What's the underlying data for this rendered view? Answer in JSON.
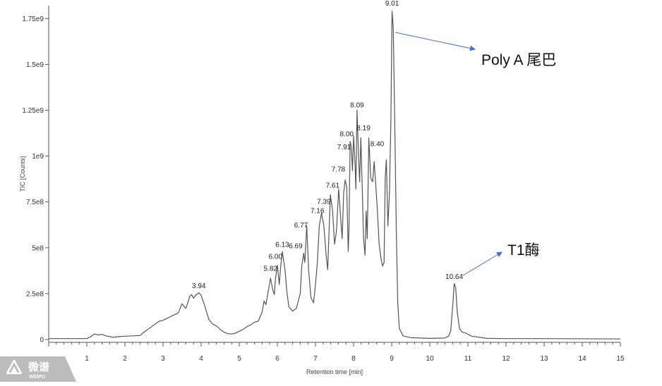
{
  "chart_data": {
    "type": "line",
    "xlabel": "Retention time [min]",
    "ylabel": "TIC [Counts]",
    "xlim": [
      0,
      15
    ],
    "ylim": [
      0,
      1850000000.0
    ],
    "x_ticks": [
      1,
      2,
      3,
      4,
      5,
      6,
      7,
      8,
      9,
      10,
      11,
      12,
      13,
      14,
      15
    ],
    "y_ticks": [
      {
        "value": 0,
        "label": "0"
      },
      {
        "value": 250000000,
        "label": "2.5e8"
      },
      {
        "value": 500000000,
        "label": "5e8"
      },
      {
        "value": 750000000,
        "label": "7.5e8"
      },
      {
        "value": 1000000000,
        "label": "1e9"
      },
      {
        "value": 1250000000,
        "label": "1.25e9"
      },
      {
        "value": 1500000000,
        "label": "1.5e9"
      },
      {
        "value": 1750000000,
        "label": "1.75e9"
      }
    ],
    "grid": false,
    "series": [
      {
        "color": "#555555",
        "points": [
          [
            0,
            5000000
          ],
          [
            1.0,
            5000000
          ],
          [
            1.1,
            15000000
          ],
          [
            1.2,
            30000000
          ],
          [
            1.3,
            25000000
          ],
          [
            1.4,
            28000000
          ],
          [
            1.5,
            20000000
          ],
          [
            1.7,
            12000000
          ],
          [
            1.8,
            15000000
          ],
          [
            2.0,
            18000000
          ],
          [
            2.2,
            20000000
          ],
          [
            2.4,
            22000000
          ],
          [
            2.5,
            40000000
          ],
          [
            2.6,
            55000000
          ],
          [
            2.7,
            70000000
          ],
          [
            2.8,
            85000000
          ],
          [
            2.9,
            100000000
          ],
          [
            3.0,
            105000000
          ],
          [
            3.1,
            115000000
          ],
          [
            3.2,
            125000000
          ],
          [
            3.3,
            135000000
          ],
          [
            3.4,
            145000000
          ],
          [
            3.45,
            170000000
          ],
          [
            3.5,
            195000000
          ],
          [
            3.55,
            180000000
          ],
          [
            3.6,
            170000000
          ],
          [
            3.65,
            200000000
          ],
          [
            3.7,
            235000000
          ],
          [
            3.75,
            245000000
          ],
          [
            3.8,
            225000000
          ],
          [
            3.85,
            240000000
          ],
          [
            3.94,
            255000000
          ],
          [
            4.0,
            240000000
          ],
          [
            4.1,
            180000000
          ],
          [
            4.2,
            110000000
          ],
          [
            4.3,
            85000000
          ],
          [
            4.4,
            75000000
          ],
          [
            4.5,
            55000000
          ],
          [
            4.6,
            40000000
          ],
          [
            4.7,
            32000000
          ],
          [
            4.8,
            30000000
          ],
          [
            4.9,
            35000000
          ],
          [
            5.0,
            45000000
          ],
          [
            5.1,
            55000000
          ],
          [
            5.2,
            70000000
          ],
          [
            5.3,
            80000000
          ],
          [
            5.4,
            95000000
          ],
          [
            5.5,
            100000000
          ],
          [
            5.6,
            150000000
          ],
          [
            5.65,
            210000000
          ],
          [
            5.7,
            190000000
          ],
          [
            5.75,
            250000000
          ],
          [
            5.82,
            335000000
          ],
          [
            5.88,
            270000000
          ],
          [
            5.92,
            245000000
          ],
          [
            5.95,
            330000000
          ],
          [
            6.0,
            405000000
          ],
          [
            6.05,
            300000000
          ],
          [
            6.08,
            380000000
          ],
          [
            6.13,
            480000000
          ],
          [
            6.2,
            380000000
          ],
          [
            6.25,
            260000000
          ],
          [
            6.3,
            180000000
          ],
          [
            6.4,
            155000000
          ],
          [
            6.5,
            170000000
          ],
          [
            6.6,
            250000000
          ],
          [
            6.64,
            400000000
          ],
          [
            6.69,
            470000000
          ],
          [
            6.72,
            420000000
          ],
          [
            6.77,
            620000000
          ],
          [
            6.82,
            380000000
          ],
          [
            6.88,
            230000000
          ],
          [
            6.95,
            200000000
          ],
          [
            7.0,
            300000000
          ],
          [
            7.05,
            420000000
          ],
          [
            7.1,
            620000000
          ],
          [
            7.16,
            690000000
          ],
          [
            7.22,
            620000000
          ],
          [
            7.28,
            460000000
          ],
          [
            7.32,
            380000000
          ],
          [
            7.39,
            790000000
          ],
          [
            7.45,
            700000000
          ],
          [
            7.5,
            520000000
          ],
          [
            7.55,
            590000000
          ],
          [
            7.61,
            820000000
          ],
          [
            7.66,
            670000000
          ],
          [
            7.7,
            550000000
          ],
          [
            7.74,
            800000000
          ],
          [
            7.78,
            870000000
          ],
          [
            7.82,
            830000000
          ],
          [
            7.86,
            480000000
          ],
          [
            7.88,
            600000000
          ],
          [
            7.91,
            1080000000
          ],
          [
            7.94,
            1050000000
          ],
          [
            7.97,
            920000000
          ],
          [
            8.0,
            1110000000
          ],
          [
            8.04,
            950000000
          ],
          [
            8.06,
            820000000
          ],
          [
            8.09,
            1250000000
          ],
          [
            8.13,
            1000000000
          ],
          [
            8.16,
            860000000
          ],
          [
            8.19,
            1100000000
          ],
          [
            8.22,
            880000000
          ],
          [
            8.26,
            560000000
          ],
          [
            8.3,
            460000000
          ],
          [
            8.33,
            700000000
          ],
          [
            8.36,
            550000000
          ],
          [
            8.4,
            1100000000
          ],
          [
            8.45,
            880000000
          ],
          [
            8.5,
            860000000
          ],
          [
            8.54,
            970000000
          ],
          [
            8.58,
            850000000
          ],
          [
            8.62,
            720000000
          ],
          [
            8.67,
            520000000
          ],
          [
            8.72,
            440000000
          ],
          [
            8.76,
            400000000
          ],
          [
            8.8,
            420000000
          ],
          [
            8.83,
            880000000
          ],
          [
            8.86,
            980000000
          ],
          [
            8.9,
            620000000
          ],
          [
            8.94,
            800000000
          ],
          [
            8.98,
            1200000000
          ],
          [
            9.01,
            1790000000
          ],
          [
            9.04,
            1700000000
          ],
          [
            9.08,
            1200000000
          ],
          [
            9.12,
            600000000
          ],
          [
            9.16,
            200000000
          ],
          [
            9.2,
            60000000
          ],
          [
            9.3,
            20000000
          ],
          [
            9.5,
            10000000
          ],
          [
            10.0,
            6000000
          ],
          [
            10.4,
            8000000
          ],
          [
            10.5,
            20000000
          ],
          [
            10.55,
            50000000
          ],
          [
            10.6,
            180000000
          ],
          [
            10.64,
            305000000
          ],
          [
            10.68,
            280000000
          ],
          [
            10.72,
            150000000
          ],
          [
            10.78,
            60000000
          ],
          [
            10.85,
            40000000
          ],
          [
            10.95,
            35000000
          ],
          [
            11.1,
            18000000
          ],
          [
            11.5,
            6000000
          ],
          [
            12.0,
            5000000
          ],
          [
            13.0,
            5000000
          ],
          [
            15.0,
            3000000
          ]
        ]
      }
    ],
    "peak_labels": [
      {
        "label": "3.94",
        "x": 3.94,
        "y": 280000000
      },
      {
        "label": "5.82",
        "x": 5.82,
        "y": 375000000
      },
      {
        "label": "6.00",
        "x": 5.95,
        "y": 440000000
      },
      {
        "label": "6.13",
        "x": 6.13,
        "y": 505000000
      },
      {
        "label": "6.69",
        "x": 6.48,
        "y": 498000000
      },
      {
        "label": "6.77",
        "x": 6.62,
        "y": 610000000
      },
      {
        "label": "7.16",
        "x": 7.05,
        "y": 690000000
      },
      {
        "label": "7.39",
        "x": 7.22,
        "y": 740000000
      },
      {
        "label": "7.61",
        "x": 7.45,
        "y": 828000000
      },
      {
        "label": "7.78",
        "x": 7.6,
        "y": 915000000
      },
      {
        "label": "7.91",
        "x": 7.75,
        "y": 1037000000
      },
      {
        "label": "8.00",
        "x": 7.82,
        "y": 1108000000
      },
      {
        "label": "8.09",
        "x": 8.09,
        "y": 1265000000
      },
      {
        "label": "8.19",
        "x": 8.26,
        "y": 1140000000
      },
      {
        "label": "8.40",
        "x": 8.62,
        "y": 1055000000
      },
      {
        "label": "9.01",
        "x": 9.01,
        "y": 1820000000
      },
      {
        "label": "10.64",
        "x": 10.64,
        "y": 330000000
      }
    ],
    "annotations": [
      {
        "text": "Poly A 尾巴"
      },
      {
        "text": "T1酶"
      }
    ]
  },
  "watermark": {
    "brand": "微谱",
    "sub": "WEIPU"
  },
  "colors": {
    "trace": "#555555",
    "axis": "#555555",
    "arrow": "#4472c4",
    "watermark": "#bcbcbc"
  }
}
